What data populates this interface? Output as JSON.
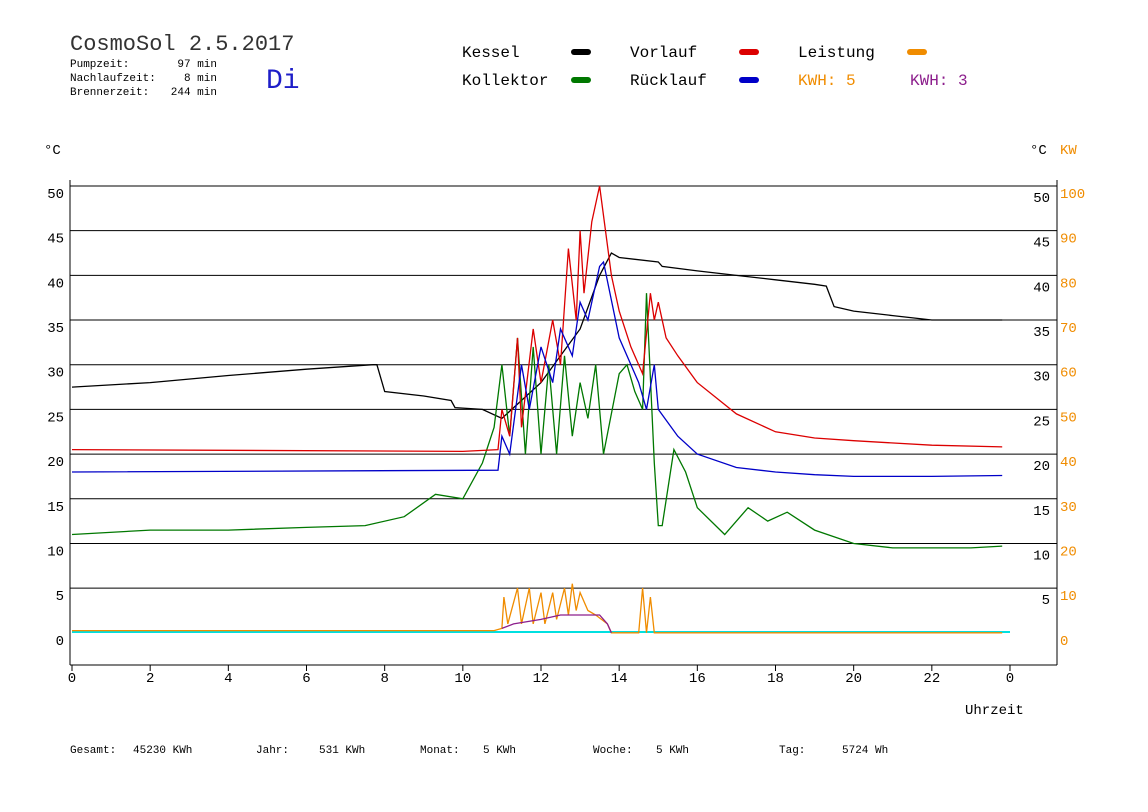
{
  "header": {
    "title": "CosmoSol 2.5.2017",
    "day": "Di",
    "stats": [
      {
        "label": "Pumpzeit:",
        "value": "97 min"
      },
      {
        "label": "Nachlaufzeit:",
        "value": "8 min"
      },
      {
        "label": "Brennerzeit:",
        "value": "244 min"
      }
    ],
    "kwh_labels": [
      {
        "text": "KWH: 5",
        "color": "#f08c00"
      },
      {
        "text": "KWH: 3",
        "color": "#8c1e8c"
      }
    ]
  },
  "chart_data": {
    "type": "line",
    "y_unit": "°C",
    "y2_unit_c": "°C",
    "y2_unit": "KW",
    "x_label": "Uhrzeit",
    "xlim": [
      0,
      24
    ],
    "xticks": [
      0,
      2,
      4,
      6,
      8,
      10,
      12,
      14,
      16,
      18,
      20,
      22,
      {
        "value": 24,
        "label": "0"
      }
    ],
    "ylim": [
      -3.6,
      50
    ],
    "yticks": [
      0,
      5,
      10,
      15,
      20,
      25,
      30,
      35,
      40,
      45,
      50
    ],
    "right_yticks": [
      5,
      10,
      15,
      20,
      25,
      30,
      35,
      40,
      45,
      50
    ],
    "y2lim": [
      -7.2,
      100
    ],
    "y2ticks": [
      0,
      10,
      20,
      30,
      40,
      50,
      60,
      70,
      80,
      90,
      100
    ],
    "grid": true,
    "series": [
      {
        "name": "Kessel",
        "color": "#000000",
        "x": [
          0,
          2,
          4,
          6,
          7.7,
          7.8,
          8,
          9,
          9.7,
          9.8,
          10.5,
          11,
          12,
          12.5,
          13,
          13.5,
          13.8,
          14,
          15,
          15.1,
          16,
          17,
          18,
          19,
          19.3,
          19.5,
          20,
          21,
          22,
          23,
          23.8
        ],
        "values": [
          27.5,
          28,
          28.8,
          29.5,
          30,
          30,
          27,
          26.5,
          26,
          25.2,
          25,
          24,
          28,
          31,
          34,
          40,
          42.5,
          42,
          41.5,
          41,
          40.5,
          40,
          39.5,
          39,
          38.8,
          36.5,
          36,
          35.5,
          35,
          35,
          35
        ]
      },
      {
        "name": "Kollektor",
        "color": "#007800",
        "x": [
          0,
          2,
          4,
          6,
          7.5,
          8.5,
          9.3,
          10,
          10.5,
          10.8,
          11,
          11.2,
          11.4,
          11.6,
          11.8,
          12,
          12.2,
          12.4,
          12.6,
          12.8,
          13,
          13.2,
          13.4,
          13.6,
          14,
          14.2,
          14.4,
          14.6,
          14.7,
          14.9,
          15,
          15.1,
          15.4,
          15.7,
          16,
          16.7,
          17.3,
          17.8,
          18.3,
          19,
          20,
          21,
          22,
          23,
          23.8
        ],
        "values": [
          11,
          11.5,
          11.5,
          11.8,
          12,
          13,
          15.5,
          15,
          19,
          23,
          30,
          22,
          33,
          20,
          32,
          20,
          30,
          20,
          31,
          22,
          28,
          24,
          30,
          20,
          29,
          30,
          27,
          25,
          38,
          19,
          12,
          12,
          20.5,
          18,
          14,
          11,
          14,
          12.5,
          13.5,
          11.5,
          10,
          9.5,
          9.5,
          9.5,
          9.7
        ]
      },
      {
        "name": "Vorlauf",
        "color": "#dc0000",
        "x": [
          0,
          10,
          10.9,
          11,
          11.2,
          11.4,
          11.5,
          11.8,
          12,
          12.3,
          12.5,
          12.7,
          12.9,
          13,
          13.1,
          13.3,
          13.5,
          13.8,
          14,
          14.3,
          14.6,
          14.8,
          14.9,
          15,
          15.2,
          15.5,
          16,
          17,
          18,
          19,
          20,
          22,
          23.8
        ],
        "values": [
          20.5,
          20.3,
          20.5,
          25,
          22,
          33,
          23,
          34,
          28,
          35,
          30,
          43,
          35,
          45,
          38,
          46,
          50,
          40,
          36,
          32,
          29,
          38,
          35,
          37,
          33,
          31,
          28,
          24.5,
          22.5,
          21.8,
          21.5,
          21,
          20.8
        ]
      },
      {
        "name": "Rücklauf",
        "color": "#0000c8",
        "x": [
          0,
          10.9,
          11,
          11.2,
          11.5,
          11.7,
          12,
          12.3,
          12.5,
          12.8,
          13,
          13.2,
          13.5,
          13.6,
          14,
          14.5,
          14.7,
          14.9,
          15,
          15.5,
          16,
          17,
          18,
          19,
          20,
          22,
          23.8
        ],
        "values": [
          18,
          18.2,
          22,
          20,
          30,
          25,
          32,
          28,
          34,
          31,
          37,
          35,
          41,
          41.5,
          33,
          28,
          25,
          30,
          25,
          22,
          20,
          18.5,
          18,
          17.7,
          17.5,
          17.5,
          17.6
        ]
      },
      {
        "name": "Leistung",
        "color": "#f08c00",
        "axis": "y2",
        "x": [
          0,
          10.8,
          11,
          11.05,
          11.15,
          11.4,
          11.5,
          11.7,
          11.8,
          12,
          12.1,
          12.3,
          12.4,
          12.6,
          12.7,
          12.8,
          12.9,
          13,
          13.2,
          13.4,
          13.7,
          13.8,
          14.5,
          14.6,
          14.7,
          14.8,
          14.9,
          23.8
        ],
        "values": [
          0.5,
          0.5,
          1,
          8,
          2,
          10,
          2,
          10,
          2,
          9,
          2,
          9,
          3,
          10,
          4,
          11,
          5,
          9,
          5,
          4,
          2,
          0,
          0,
          10,
          0,
          8,
          0,
          0
        ]
      },
      {
        "color": "#8c1e8c",
        "axis": "y2",
        "x": [
          11,
          11.3,
          12,
          12.5,
          13,
          13.5,
          13.7,
          13.8
        ],
        "values": [
          1,
          2,
          3,
          4,
          4,
          4,
          2,
          0
        ]
      }
    ]
  },
  "footer": [
    {
      "label": "Gesamt:",
      "value": "45230 KWh"
    },
    {
      "label": "Jahr:",
      "value": "531 KWh"
    },
    {
      "label": "Monat:",
      "value": "5 KWh"
    },
    {
      "label": "Woche:",
      "value": "5 KWh"
    },
    {
      "label": "Tag:",
      "value": "5724 Wh"
    }
  ]
}
